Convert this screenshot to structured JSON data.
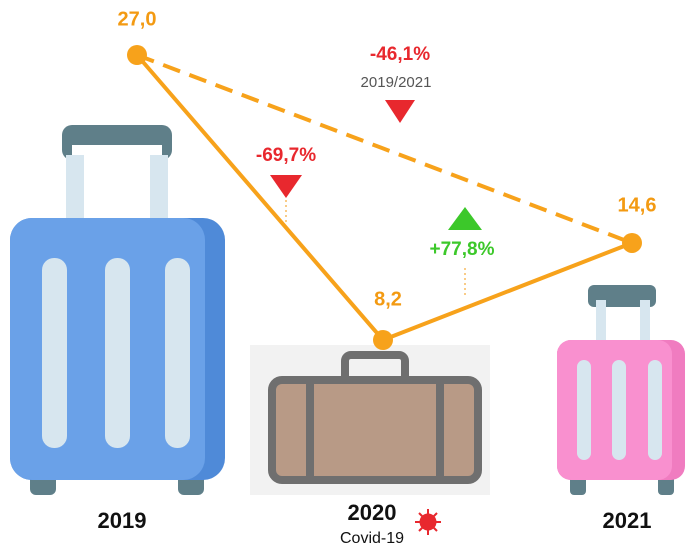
{
  "chart_data": {
    "type": "line",
    "categories": [
      "2019",
      "2020",
      "2021"
    ],
    "values": [
      27.0,
      8.2,
      14.6
    ],
    "value_labels": [
      "27,0",
      "8,2",
      "14,6"
    ],
    "color": "#f7a21b",
    "annotations": {
      "change_2019_2020": "-69,7%",
      "change_2020_2021": "+77,8%",
      "change_2019_2021": "-46,1%",
      "period": "2019/2021",
      "note_2020": "Covid-19"
    }
  }
}
